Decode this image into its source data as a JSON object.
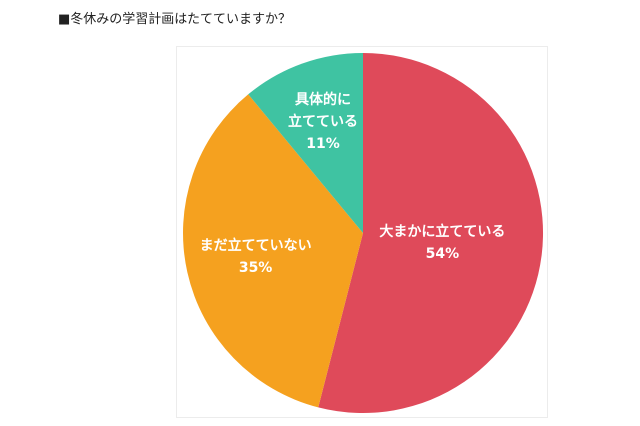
{
  "heading": {
    "marker": "■",
    "text": "冬休みの学習計画はたてていますか？"
  },
  "chart_data": {
    "type": "pie",
    "title": "冬休みの学習計画はたてていますか？",
    "start_angle_deg": 0,
    "direction": "clockwise",
    "slices": [
      {
        "label_lines": [
          "大まかに立てている"
        ],
        "value": 54,
        "value_label": "54%",
        "color": "#df4a5a"
      },
      {
        "label_lines": [
          "まだ立てていない"
        ],
        "value": 35,
        "value_label": "35%",
        "color": "#f5a11f"
      },
      {
        "label_lines": [
          "具体的に",
          "立てている"
        ],
        "value": 11,
        "value_label": "11%",
        "color": "#3fc3a2"
      }
    ]
  }
}
